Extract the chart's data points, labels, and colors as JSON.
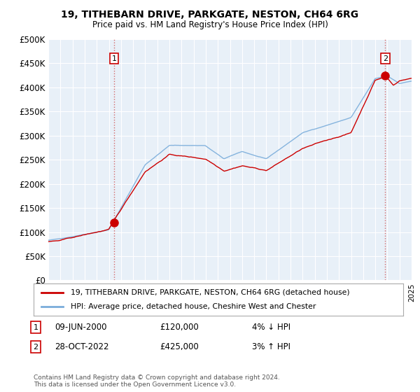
{
  "title": "19, TITHEBARN DRIVE, PARKGATE, NESTON, CH64 6RG",
  "subtitle": "Price paid vs. HM Land Registry's House Price Index (HPI)",
  "legend_line1": "19, TITHEBARN DRIVE, PARKGATE, NESTON, CH64 6RG (detached house)",
  "legend_line2": "HPI: Average price, detached house, Cheshire West and Chester",
  "annotation1": {
    "num": "1",
    "date": "09-JUN-2000",
    "price": "£120,000",
    "pct": "4% ↓ HPI"
  },
  "annotation2": {
    "num": "2",
    "date": "28-OCT-2022",
    "price": "£425,000",
    "pct": "3% ↑ HPI"
  },
  "footnote": "Contains HM Land Registry data © Crown copyright and database right 2024.\nThis data is licensed under the Open Government Licence v3.0.",
  "sale_color": "#cc0000",
  "hpi_color": "#7aaddb",
  "plot_bg_color": "#e8f0f8",
  "background_color": "#ffffff",
  "grid_color": "#ffffff",
  "ylim": [
    0,
    500000
  ],
  "yticks": [
    0,
    50000,
    100000,
    150000,
    200000,
    250000,
    300000,
    350000,
    400000,
    450000,
    500000
  ],
  "ytick_labels": [
    "£0",
    "£50K",
    "£100K",
    "£150K",
    "£200K",
    "£250K",
    "£300K",
    "£350K",
    "£400K",
    "£450K",
    "£500K"
  ],
  "sale1_x": 2000.44,
  "sale1_y": 120000,
  "sale2_x": 2022.83,
  "sale2_y": 425000,
  "xmin": 1995.0,
  "xmax": 2025.0
}
